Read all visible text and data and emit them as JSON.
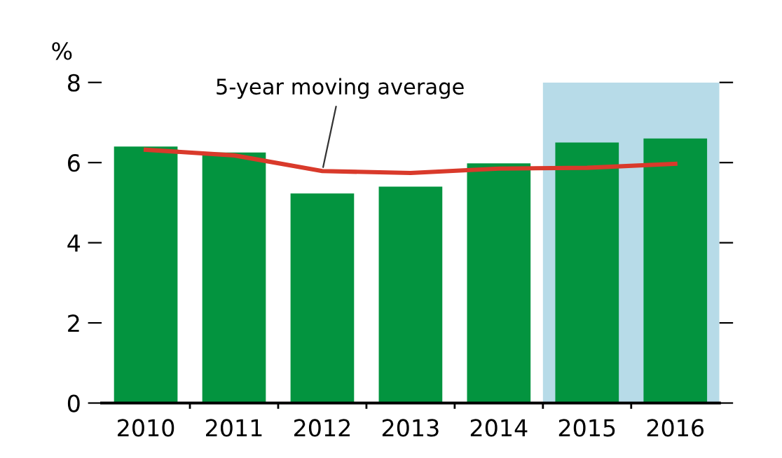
{
  "chart_data": {
    "type": "bar",
    "ylabel": "%",
    "categories": [
      "2010",
      "2011",
      "2012",
      "2013",
      "2014",
      "2015",
      "2016"
    ],
    "series": [
      {
        "color": "#03943f",
        "values": [
          6.4,
          6.25,
          5.23,
          5.4,
          5.98,
          6.5,
          6.6
        ]
      },
      {
        "type": "line",
        "color": "#d93a2b",
        "values": [
          6.32,
          6.18,
          5.79,
          5.74,
          5.85,
          5.87,
          5.97
        ]
      }
    ],
    "annotations": [
      {
        "text": "5-year moving average",
        "x": "2012",
        "y": 5.79
      }
    ],
    "bands": [
      {
        "axis": "x",
        "from": "2015",
        "to": "2016",
        "color": "#b7dbe8"
      }
    ],
    "ylim": [
      0,
      8
    ],
    "yticks": [
      0,
      2,
      4,
      6,
      8
    ],
    "grid": false,
    "legend": false
  }
}
